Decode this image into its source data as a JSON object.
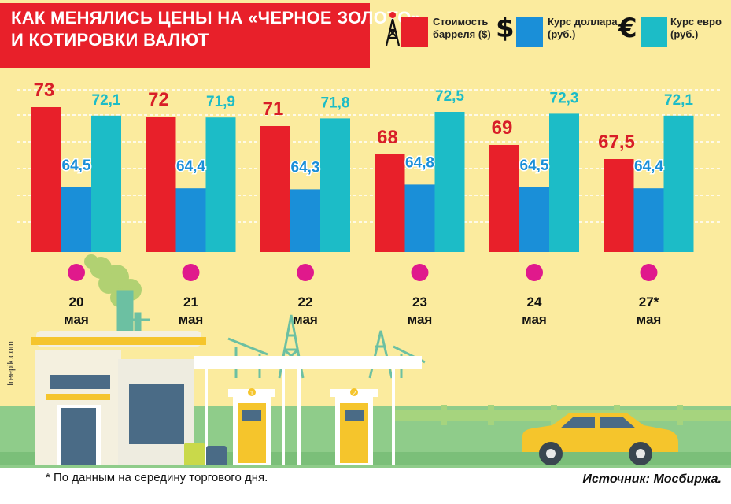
{
  "title_line1": "КАК МЕНЯЛИСЬ ЦЕНЫ НА «ЧЕРНОЕ ЗОЛОТО»",
  "title_line2": "И КОТИРОВКИ ВАЛЮТ",
  "legend": {
    "oil_line1": "Стоимость",
    "oil_line2": "барреля ($)",
    "usd_symbol": "$",
    "usd_line1": "Курс доллара",
    "usd_line2": "(руб.)",
    "eur_symbol": "€",
    "eur_line1": "Курс евро",
    "eur_line2": "(руб.)"
  },
  "colors": {
    "oil": "#e8202a",
    "usd": "#1a8fd8",
    "eur": "#1cbcc7",
    "dot": "#e0198c",
    "background": "#fbeb9e"
  },
  "chart_data": {
    "type": "bar",
    "categories": [
      {
        "day": "20",
        "month": "мая"
      },
      {
        "day": "21",
        "month": "мая"
      },
      {
        "day": "22",
        "month": "мая"
      },
      {
        "day": "23",
        "month": "мая"
      },
      {
        "day": "24",
        "month": "мая"
      },
      {
        "day": "27*",
        "month": "мая"
      }
    ],
    "series": [
      {
        "name": "Стоимость барреля ($)",
        "color": "#e8202a",
        "label_color": "#d81e28",
        "values": [
          73,
          72,
          71,
          68,
          69,
          67.5
        ],
        "labels": [
          "73",
          "72",
          "71",
          "68",
          "69",
          "67,5"
        ]
      },
      {
        "name": "Курс доллара (руб.)",
        "color": "#1a8fd8",
        "label_color": "#1a8fd8",
        "values": [
          64.5,
          64.4,
          64.3,
          64.8,
          64.5,
          64.4
        ],
        "labels": [
          "64,5",
          "64,4",
          "64,3",
          "64,8",
          "64,5",
          "64,4"
        ]
      },
      {
        "name": "Курс евро (руб.)",
        "color": "#1cbcc7",
        "label_color": "#1cbcc7",
        "values": [
          72.1,
          71.9,
          71.8,
          72.5,
          72.3,
          72.1
        ],
        "labels": [
          "72,1",
          "71,9",
          "71,8",
          "72,5",
          "72,3",
          "72,1"
        ]
      }
    ]
  },
  "pump_numbers": [
    "1",
    "2"
  ],
  "footnote": "* По данным на середину торгового дня.",
  "source": "Источник: Мосбиржа.",
  "credit": "freepik.com"
}
